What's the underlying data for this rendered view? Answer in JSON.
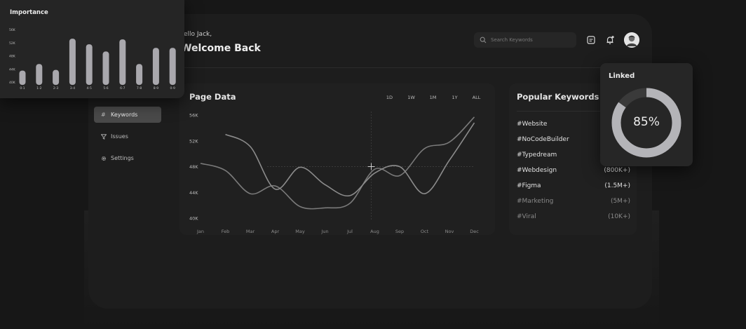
{
  "header": {
    "greeting": "ello Jack,",
    "welcome": "Welcome Back",
    "search_placeholder": "Search Keywords"
  },
  "sidebar": {
    "items": [
      {
        "label": "Keywords",
        "icon": "hash-icon",
        "active": true
      },
      {
        "label": "Issues",
        "icon": "funnel-icon",
        "active": false
      },
      {
        "label": "Settings",
        "icon": "gear-icon",
        "active": false
      }
    ]
  },
  "page_data": {
    "title": "Page Data",
    "ranges": [
      "1D",
      "1W",
      "1M",
      "1Y",
      "ALL"
    ]
  },
  "popular_keywords": {
    "title": "Popular Keywords",
    "items": [
      {
        "keyword": "#Website",
        "count": ""
      },
      {
        "keyword": "#NoCodeBuilder",
        "count": ""
      },
      {
        "keyword": "#Typedream",
        "count": ""
      },
      {
        "keyword": "#Webdesign",
        "count": "(800K+)"
      },
      {
        "keyword": "#Figma",
        "count": "(1.5M+)"
      },
      {
        "keyword": "#Marketing",
        "count": "(5M+)"
      },
      {
        "keyword": "#Viral",
        "count": "(10K+)"
      }
    ]
  },
  "linked": {
    "title": "Linked",
    "percent_label": "85%",
    "value": 0.85
  },
  "importance": {
    "title": "Importance"
  },
  "colors": {
    "background": "#171717",
    "card": "#202020",
    "line_primary": "#7a7a7a",
    "line_secondary": "#8c8c8c",
    "bar": "#a9a8ad",
    "ring": "#b4b4b8",
    "ring_track": "#3a3a3a"
  },
  "chart_data": [
    {
      "type": "line",
      "title": "Page Data",
      "x": [
        "Jan",
        "Feb",
        "Mar",
        "Apr",
        "May",
        "Jun",
        "Jul",
        "Aug",
        "Sep",
        "Oct",
        "Nov",
        "Dec"
      ],
      "yticks": [
        "56K",
        "52K",
        "48K",
        "44K",
        "40K"
      ],
      "ylim": [
        40,
        56
      ],
      "series": [
        {
          "values": [
            48.5,
            47.4,
            43.8,
            45.0,
            41.8,
            41.6,
            42.3,
            47.6,
            46.6,
            50.8,
            51.8,
            55.7
          ]
        },
        {
          "values": [
            null,
            53.0,
            51.1,
            44.5,
            47.9,
            45.2,
            43.5,
            47.0,
            48.0,
            43.8,
            49.0,
            54.8
          ]
        }
      ]
    },
    {
      "type": "bar",
      "title": "Importance",
      "categories": [
        "0-1",
        "1-2",
        "2-3",
        "3-4",
        "4-5",
        "5-6",
        "6-7",
        "7-8",
        "8-9",
        "0-9"
      ],
      "yticks": [
        "56K",
        "52K",
        "48K",
        "44K",
        "40K"
      ],
      "ylim": [
        40,
        56
      ],
      "values": [
        43.5,
        45.5,
        43.7,
        53.2,
        51.5,
        49.3,
        53.0,
        45.5,
        50.4,
        50.4
      ]
    }
  ]
}
